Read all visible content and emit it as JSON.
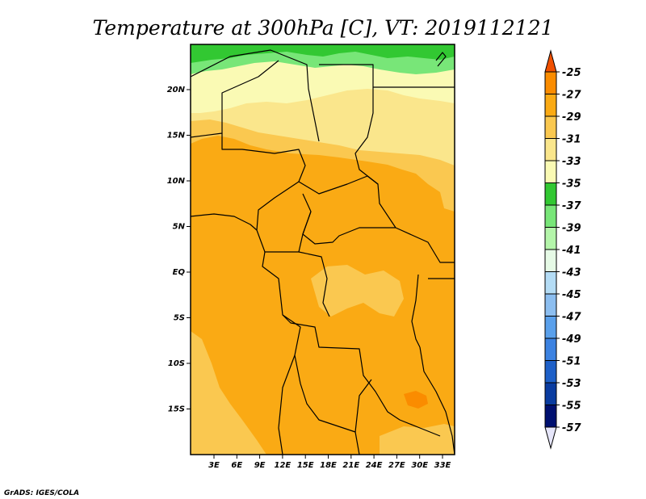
{
  "title": "Temperature at 300hPa [C], VT: 2019112121",
  "credit": "GrADS: IGES/COLA",
  "axes": {
    "x_ticks": [
      "3E",
      "6E",
      "9E",
      "12E",
      "15E",
      "18E",
      "21E",
      "24E",
      "27E",
      "30E",
      "33E"
    ],
    "y_ticks": [
      "20N",
      "15N",
      "10N",
      "5N",
      "EQ",
      "5S",
      "10S",
      "15S"
    ]
  },
  "colorbar": {
    "levels": [
      "-25",
      "-27",
      "-29",
      "-31",
      "-33",
      "-35",
      "-37",
      "-39",
      "-41",
      "-43",
      "-45",
      "-47",
      "-49",
      "-51",
      "-53",
      "-55",
      "-57"
    ],
    "colors": [
      "#f05000",
      "#fa8c00",
      "#faaa14",
      "#fac850",
      "#fae68c",
      "#fafab4",
      "#32c832",
      "#78e678",
      "#b4f5aa",
      "#e6fae6",
      "#b4dcf5",
      "#8cbef0",
      "#5aa0eb",
      "#3c82e1",
      "#1e60c8",
      "#0a3ca0",
      "#001070"
    ],
    "bottom_color": "#e6e6fa"
  },
  "map_colors": {
    "green_dark": "#32c832",
    "green_light": "#78e678",
    "pale_yellow": "#fafab4",
    "light_yellow": "#fae68c",
    "yellow_orange": "#fac850",
    "orange": "#faaa14",
    "dark_orange": "#fa8c00"
  }
}
